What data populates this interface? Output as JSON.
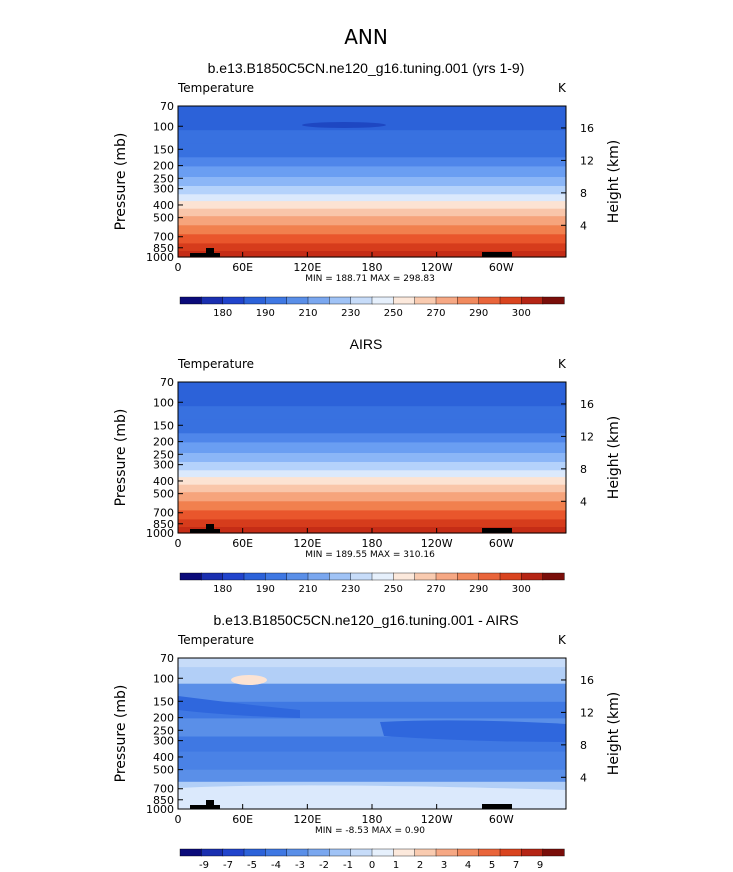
{
  "page": {
    "title": "ANN"
  },
  "chart_data": [
    {
      "type": "heatmap",
      "title": "b.e13.B1850C5CN.ne120_g16.tuning.001 (yrs 1-9)",
      "field_label": "Temperature",
      "units": "K",
      "ylabel": "Pressure (mb)",
      "y2label": "Height (km)",
      "x_ticks": [
        "0",
        "60E",
        "120E",
        "180",
        "120W",
        "60W"
      ],
      "y_ticks": [
        70,
        100,
        150,
        200,
        250,
        300,
        400,
        500,
        700,
        850,
        1000
      ],
      "y2_ticks": [
        16,
        12,
        8,
        4
      ],
      "stats": "MIN = 188.71   MAX = 298.83",
      "levels": [
        180,
        185,
        190,
        200,
        210,
        220,
        230,
        240,
        250,
        260,
        270,
        280,
        290,
        295,
        300
      ],
      "colorbar_labels": [
        "180",
        "190",
        "210",
        "230",
        "250",
        "270",
        "290",
        "300"
      ],
      "band_colors": [
        "#2c62d9",
        "#2c62d9",
        "#3871e0",
        "#3871e0",
        "#4f86ea",
        "#6a9ef2",
        "#8bb6f7",
        "#b4d2fb",
        "#dbe9fc",
        "#fce3d3",
        "#f9c6aa",
        "#f6a47c",
        "#f1804e",
        "#e9562c",
        "#d63c1c",
        "#c52c16"
      ],
      "band_ends": [
        0.05,
        0.16,
        0.25,
        0.34,
        0.4,
        0.47,
        0.53,
        0.585,
        0.63,
        0.68,
        0.73,
        0.79,
        0.85,
        0.91,
        0.96,
        1.0
      ]
    },
    {
      "type": "heatmap",
      "title": "AIRS",
      "field_label": "Temperature",
      "units": "K",
      "ylabel": "Pressure (mb)",
      "y2label": "Height (km)",
      "x_ticks": [
        "0",
        "60E",
        "120E",
        "180",
        "120W",
        "60W"
      ],
      "y_ticks": [
        70,
        100,
        150,
        200,
        250,
        300,
        400,
        500,
        700,
        850,
        1000
      ],
      "y2_ticks": [
        16,
        12,
        8,
        4
      ],
      "stats": "MIN = 189.55   MAX = 310.16",
      "levels": [
        180,
        185,
        190,
        200,
        210,
        220,
        230,
        240,
        250,
        260,
        270,
        280,
        290,
        295,
        300
      ],
      "colorbar_labels": [
        "180",
        "190",
        "210",
        "230",
        "250",
        "270",
        "290",
        "300"
      ],
      "band_colors": [
        "#2c62d9",
        "#2c62d9",
        "#3871e0",
        "#3871e0",
        "#4f86ea",
        "#6a9ef2",
        "#8bb6f7",
        "#b4d2fb",
        "#dbe9fc",
        "#fce3d3",
        "#f9c6aa",
        "#f6a47c",
        "#f1804e",
        "#e9562c",
        "#d63c1c",
        "#c52c16"
      ],
      "band_ends": [
        0.05,
        0.16,
        0.25,
        0.34,
        0.4,
        0.47,
        0.53,
        0.585,
        0.63,
        0.68,
        0.73,
        0.79,
        0.85,
        0.91,
        0.96,
        1.0
      ]
    },
    {
      "type": "heatmap",
      "title": "b.e13.B1850C5CN.ne120_g16.tuning.001 - AIRS",
      "field_label": "Temperature",
      "units": "K",
      "ylabel": "Pressure (mb)",
      "y2label": "Height (km)",
      "x_ticks": [
        "0",
        "60E",
        "120E",
        "180",
        "120W",
        "60W"
      ],
      "y_ticks": [
        70,
        100,
        150,
        200,
        250,
        300,
        400,
        500,
        700,
        850,
        1000
      ],
      "y2_ticks": [
        16,
        12,
        8,
        4
      ],
      "stats": "MIN = -8.53   MAX =   0.90",
      "levels": [
        -9,
        -8,
        -7,
        -6,
        -5,
        -4.5,
        -4,
        -3.5,
        -3,
        -2.5,
        -2,
        -1.5,
        -1,
        -0.5,
        0
      ],
      "colorbar_labels": [
        "-9",
        "-7",
        "-5",
        "-4",
        "-3",
        "-2",
        "-1",
        "0",
        "1",
        "2",
        "3",
        "4",
        "5",
        "7",
        "9"
      ],
      "band_colors": [
        "#c7dcf9",
        "#b2cff7",
        "#5a8fe8",
        "#3f78e3",
        "#5a8fe8",
        "#3f78e3",
        "#4a82e6",
        "#5a8fe8",
        "#b2cff7",
        "#dbe9fc"
      ],
      "band_ends": [
        0.06,
        0.17,
        0.29,
        0.4,
        0.52,
        0.62,
        0.74,
        0.82,
        0.91,
        1.0
      ]
    }
  ],
  "colorbar_swatches": [
    "#0b0b7a",
    "#1a2fb0",
    "#2144cc",
    "#2c62d9",
    "#3f78e3",
    "#5a8fe8",
    "#7aa7ef",
    "#a0c3f6",
    "#c7dcf9",
    "#e6f0fc",
    "#fce9dc",
    "#f9cbb0",
    "#f6a884",
    "#f18a5e",
    "#e9653b",
    "#d9441f",
    "#b52515",
    "#7a0e0a"
  ]
}
